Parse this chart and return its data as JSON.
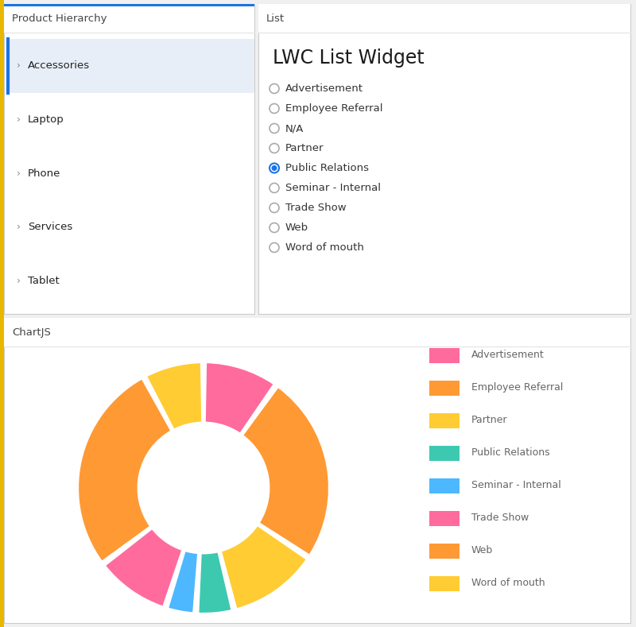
{
  "bg_color": "#f0f0f0",
  "panel_bg": "#ffffff",
  "border_color": "#cccccc",
  "header_border": "#e8e8e8",
  "left_accent_color": "#e8b800",
  "blue_accent": "#1a73e8",
  "top_left_title": "Product Hierarchy",
  "top_right_title": "List",
  "bottom_title": "ChartJS",
  "tree_items": [
    "Accessories",
    "Laptop",
    "Phone",
    "Services",
    "Tablet"
  ],
  "tree_selected": 0,
  "tree_selected_bg": "#e8eef8",
  "tree_accent_color": "#1a73e8",
  "list_widget_title": "LWC List Widget",
  "list_items": [
    "Advertisement",
    "Employee Referral",
    "N/A",
    "Partner",
    "Public Relations",
    "Seminar - Internal",
    "Trade Show",
    "Web",
    "Word of mouth"
  ],
  "list_selected": 4,
  "radio_selected_color": "#1a73e8",
  "donut_values": [
    10,
    25,
    12,
    5,
    4,
    10,
    28,
    8
  ],
  "donut_colors": [
    "#ff6b9d",
    "#ff9933",
    "#ffcc33",
    "#3dc9b0",
    "#4db8ff",
    "#ff6b9d",
    "#ff9933",
    "#ffcc33"
  ],
  "legend_labels": [
    "Advertisement",
    "Employee Referral",
    "Partner",
    "Public Relations",
    "Seminar - Internal",
    "Trade Show",
    "Web",
    "Word of mouth"
  ],
  "legend_colors": [
    "#ff6b9d",
    "#ff9933",
    "#ffcc33",
    "#3dc9b0",
    "#4db8ff",
    "#ff6b9d",
    "#ff9933",
    "#ffcc33"
  ]
}
